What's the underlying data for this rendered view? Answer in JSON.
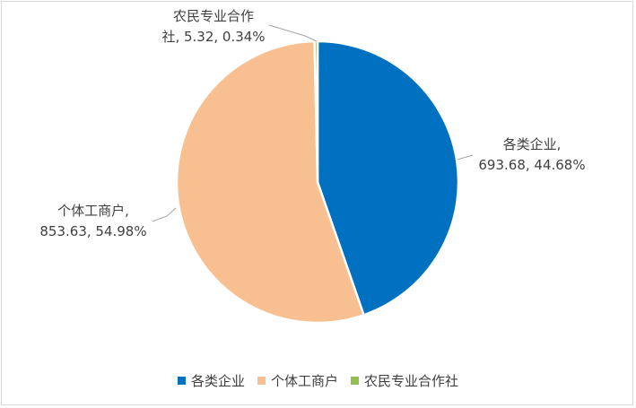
{
  "chart_data": {
    "type": "pie",
    "categories": [
      "各类企业",
      "个体工商户",
      "农民专业合作社"
    ],
    "values": [
      693.68,
      853.63,
      5.32
    ],
    "percentages": [
      "44.68%",
      "54.98%",
      "0.34%"
    ],
    "colors": [
      "#0070c0",
      "#f8c090",
      "#92c050"
    ],
    "data_labels": [
      {
        "line1": "各类企业,",
        "line2": "693.68, 44.68%"
      },
      {
        "line1": "个体工商户,",
        "line2": "853.63, 54.98%"
      },
      {
        "line1": "农民专业合作",
        "line2": "社, 5.32, 0.34%"
      }
    ],
    "legend_position": "bottom"
  },
  "legend": {
    "items": [
      {
        "label": "各类企业",
        "color": "#0070c0"
      },
      {
        "label": "个体工商户",
        "color": "#f8c090"
      },
      {
        "label": "农民专业合作社",
        "color": "#92c050"
      }
    ]
  }
}
